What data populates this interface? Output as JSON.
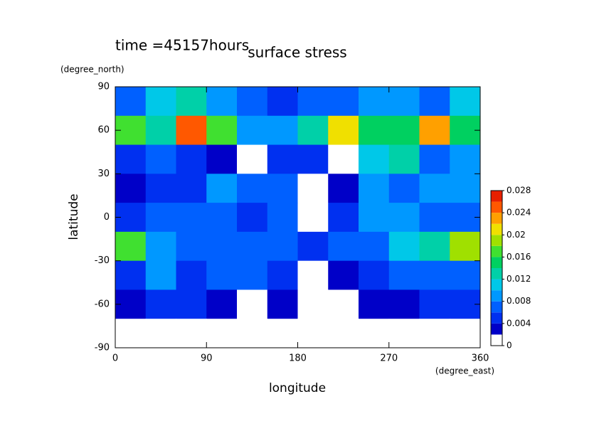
{
  "chart_data": {
    "type": "contour",
    "title": "surface stress",
    "annotation": "time =45157hours",
    "x_label": "longitude",
    "y_label": "latitude",
    "x_unit": "(degree_east)",
    "y_unit": "(degree_north)",
    "xlim": [
      0,
      360
    ],
    "xticks": [
      0,
      90,
      180,
      270,
      360
    ],
    "ylim": [
      -90,
      90
    ],
    "yticks": [
      -90,
      -60,
      -30,
      0,
      30,
      60,
      90
    ],
    "x": [
      15,
      45,
      75,
      105,
      135,
      165,
      195,
      225,
      255,
      285,
      315,
      345
    ],
    "y": [
      80,
      60,
      40,
      20,
      0,
      -20,
      -40,
      -60,
      -80
    ],
    "z": [
      [
        0.006,
        0.01,
        0.012,
        0.008,
        0.006,
        0.004,
        0.006,
        0.006,
        0.008,
        0.008,
        0.006,
        0.01
      ],
      [
        0.016,
        0.012,
        0.024,
        0.016,
        0.008,
        0.008,
        0.012,
        0.02,
        0.014,
        0.014,
        0.022,
        0.014
      ],
      [
        0.004,
        0.006,
        0.004,
        0.002,
        0,
        0.004,
        0.004,
        0,
        0.01,
        0.012,
        0.006,
        0.008
      ],
      [
        0.002,
        0.004,
        0.004,
        0.008,
        0.006,
        0.006,
        0,
        0.002,
        0.008,
        0.006,
        0.008,
        0.008
      ],
      [
        0.004,
        0.006,
        0.006,
        0.006,
        0.004,
        0.006,
        0,
        0.004,
        0.008,
        0.008,
        0.006,
        0.006
      ],
      [
        0.016,
        0.008,
        0.006,
        0.006,
        0.006,
        0.006,
        0.004,
        0.006,
        0.006,
        0.01,
        0.012,
        0.018
      ],
      [
        0.004,
        0.008,
        0.004,
        0.006,
        0.006,
        0.004,
        0,
        0.002,
        0.004,
        0.006,
        0.006,
        0.006
      ],
      [
        0.002,
        0.004,
        0.004,
        0.002,
        0,
        0.002,
        0,
        0,
        0.002,
        0.002,
        0.004,
        0.004
      ],
      [
        0,
        0,
        0,
        0,
        0,
        0,
        0,
        0,
        0,
        0,
        0,
        0
      ]
    ],
    "levels": [
      0,
      0.002,
      0.004,
      0.006,
      0.008,
      0.01,
      0.012,
      0.014,
      0.016,
      0.018,
      0.02,
      0.022,
      0.024,
      0.026,
      0.028
    ],
    "colors": [
      "#ffffff",
      "#0000c8",
      "#0030f0",
      "#0060ff",
      "#0098ff",
      "#00c8e8",
      "#00d0a8",
      "#00d060",
      "#40e030",
      "#a0e000",
      "#f0e000",
      "#ffa000",
      "#ff5800",
      "#e82000"
    ],
    "colorbar_ticks": [
      0,
      0.004,
      0.008,
      0.012,
      0.016,
      0.02,
      0.024,
      0.028
    ]
  }
}
